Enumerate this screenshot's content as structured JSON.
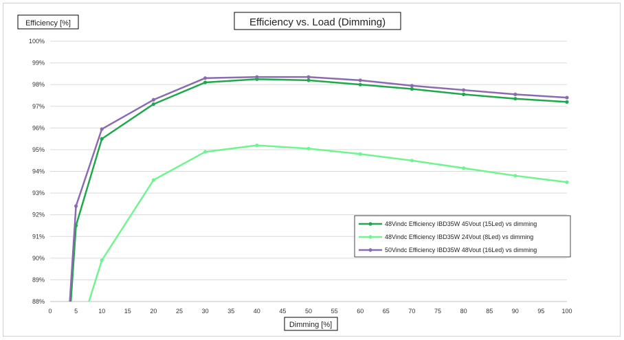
{
  "chart_data": {
    "type": "line",
    "title": "Efficiency vs. Load (Dimming)",
    "xlabel": "Dimming [%]",
    "ylabel": "Efficiency [%]",
    "xlim": [
      0,
      100
    ],
    "ylim": [
      88,
      100
    ],
    "x_ticks": [
      "0",
      "5",
      "10",
      "15",
      "20",
      "25",
      "30",
      "35",
      "40",
      "45",
      "50",
      "55",
      "60",
      "65",
      "70",
      "75",
      "80",
      "85",
      "90",
      "95",
      "100"
    ],
    "y_ticks": [
      "88%",
      "89%",
      "90%",
      "91%",
      "92%",
      "93%",
      "94%",
      "95%",
      "96%",
      "97%",
      "98%",
      "99%",
      "100%"
    ],
    "grid": "horizontal",
    "legend_position": "lower-right",
    "series": [
      {
        "name": "48Vindc Efficiency IBD35W 45Vout (15Led) vs dimming",
        "color": "#1fa84a",
        "x": [
          4,
          5,
          10,
          20,
          30,
          40,
          50,
          60,
          70,
          80,
          90,
          100
        ],
        "y": [
          88.0,
          91.5,
          95.5,
          97.1,
          98.1,
          98.25,
          98.2,
          98.0,
          97.8,
          97.55,
          97.35,
          97.2
        ]
      },
      {
        "name": "48Vindc Efficiency IBD35W 24Vout (8Led) vs dimming",
        "color": "#6ef58f",
        "x": [
          7.5,
          10,
          20,
          30,
          40,
          50,
          60,
          70,
          80,
          90,
          100
        ],
        "y": [
          88.0,
          89.9,
          93.6,
          94.9,
          95.2,
          95.05,
          94.8,
          94.5,
          94.15,
          93.8,
          93.5
        ]
      },
      {
        "name": "50Vindc Efficiency IBD35W 48Vout (16Led) vs dimming",
        "color": "#8a6bb0",
        "x": [
          3.8,
          5,
          10,
          20,
          30,
          40,
          50,
          60,
          70,
          80,
          90,
          100
        ],
        "y": [
          88.0,
          92.4,
          95.95,
          97.3,
          98.3,
          98.35,
          98.35,
          98.2,
          97.95,
          97.75,
          97.55,
          97.4
        ]
      }
    ]
  }
}
